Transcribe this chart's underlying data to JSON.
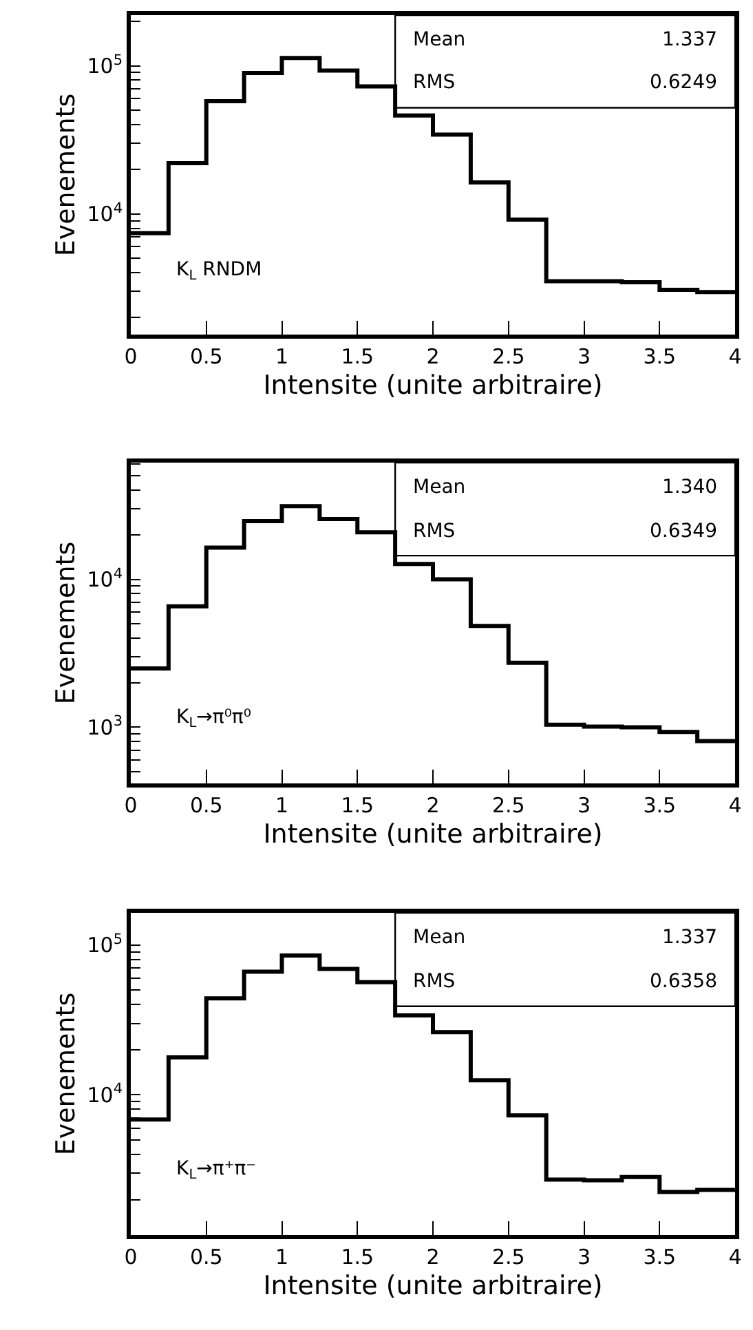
{
  "chart_data": [
    {
      "type": "histogram",
      "xlabel": "Intensite (unite arbitraire)",
      "ylabel": "Evenements",
      "log": "y",
      "color": "#000000",
      "bins": [
        0,
        0.25,
        0.5,
        0.75,
        1,
        1.25,
        1.5,
        1.75,
        2,
        2.25,
        2.5,
        2.75,
        3,
        3.25,
        3.5,
        3.75,
        4
      ],
      "values": [
        7400,
        22000,
        57700,
        89500,
        113000,
        93000,
        72600,
        46200,
        34300,
        16300,
        9150,
        3510,
        3510,
        3450,
        3070,
        2960
      ],
      "xlim": [
        0,
        4
      ],
      "ylim": [
        1530,
        220000
      ],
      "xticks": [
        0,
        0.5,
        1,
        1.5,
        2,
        2.5,
        3,
        3.5,
        4
      ],
      "yticks": [
        {
          "value": 2000,
          "label": null
        },
        {
          "value": 3000,
          "label": null
        },
        {
          "value": 4000,
          "label": null
        },
        {
          "value": 5000,
          "label": null
        },
        {
          "value": 6000,
          "label": null
        },
        {
          "value": 7000,
          "label": null
        },
        {
          "value": 8000,
          "label": null
        },
        {
          "value": 9000,
          "label": null
        },
        {
          "value": 10000,
          "label": "10$^{4}$"
        },
        {
          "value": 20000,
          "label": null
        },
        {
          "value": 30000,
          "label": null
        },
        {
          "value": 40000,
          "label": null
        },
        {
          "value": 50000,
          "label": null
        },
        {
          "value": 60000,
          "label": null
        },
        {
          "value": 70000,
          "label": null
        },
        {
          "value": 80000,
          "label": null
        },
        {
          "value": 90000,
          "label": null
        },
        {
          "value": 100000,
          "label": "10$^{5}$"
        },
        {
          "value": 200000,
          "label": null
        }
      ],
      "annotations": [
        "Mean",
        "1.337",
        "RMS",
        "0.6249",
        "K$_{L}$ RNDM"
      ]
    },
    {
      "type": "histogram",
      "xlabel": "Intensite (unite arbitraire)",
      "ylabel": "Evenements",
      "log": "y",
      "color": "#000000",
      "bins": [
        0,
        0.25,
        0.5,
        0.75,
        1,
        1.25,
        1.5,
        1.75,
        2,
        2.25,
        2.5,
        2.75,
        3,
        3.25,
        3.5,
        3.75,
        4
      ],
      "values": [
        2500,
        6570,
        16400,
        24800,
        31300,
        25600,
        20800,
        12700,
        10000,
        4840,
        2730,
        1040,
        1010,
        1000,
        929,
        807
      ],
      "xlim": [
        0,
        4
      ],
      "ylim": [
        417,
        61600
      ],
      "xticks": [
        0,
        0.5,
        1,
        1.5,
        2,
        2.5,
        3,
        3.5,
        4
      ],
      "yticks": [
        {
          "value": 500,
          "label": null
        },
        {
          "value": 600,
          "label": null
        },
        {
          "value": 700,
          "label": null
        },
        {
          "value": 800,
          "label": null
        },
        {
          "value": 900,
          "label": null
        },
        {
          "value": 1000,
          "label": "10$^{3}$"
        },
        {
          "value": 2000,
          "label": null
        },
        {
          "value": 3000,
          "label": null
        },
        {
          "value": 4000,
          "label": null
        },
        {
          "value": 5000,
          "label": null
        },
        {
          "value": 6000,
          "label": null
        },
        {
          "value": 7000,
          "label": null
        },
        {
          "value": 8000,
          "label": null
        },
        {
          "value": 9000,
          "label": null
        },
        {
          "value": 10000,
          "label": "10$^{4}$"
        },
        {
          "value": 20000,
          "label": null
        },
        {
          "value": 30000,
          "label": null
        },
        {
          "value": 40000,
          "label": null
        },
        {
          "value": 50000,
          "label": null
        },
        {
          "value": 60000,
          "label": null
        }
      ],
      "annotations": [
        "Mean",
        "1.340",
        "RMS",
        "0.6349",
        "K$_{L}$→π⁰π⁰"
      ]
    },
    {
      "type": "histogram",
      "xlabel": "Intensite (unite arbitraire)",
      "ylabel": "Evenements",
      "log": "y",
      "color": "#000000",
      "bins": [
        0,
        0.25,
        0.5,
        0.75,
        1,
        1.25,
        1.5,
        1.75,
        2,
        2.25,
        2.5,
        2.75,
        3,
        3.25,
        3.5,
        3.75,
        4
      ],
      "values": [
        6840,
        17800,
        44100,
        66400,
        85100,
        69300,
        56500,
        33900,
        26200,
        12500,
        7300,
        2720,
        2690,
        2830,
        2250,
        2320
      ],
      "xlim": [
        0,
        4
      ],
      "ylim": [
        1160,
        164000
      ],
      "xticks": [
        0,
        0.5,
        1,
        1.5,
        2,
        2.5,
        3,
        3.5,
        4
      ],
      "yticks": [
        {
          "value": 2000,
          "label": null
        },
        {
          "value": 3000,
          "label": null
        },
        {
          "value": 4000,
          "label": null
        },
        {
          "value": 5000,
          "label": null
        },
        {
          "value": 6000,
          "label": null
        },
        {
          "value": 7000,
          "label": null
        },
        {
          "value": 8000,
          "label": null
        },
        {
          "value": 9000,
          "label": null
        },
        {
          "value": 10000,
          "label": "10$^{4}$"
        },
        {
          "value": 20000,
          "label": null
        },
        {
          "value": 30000,
          "label": null
        },
        {
          "value": 40000,
          "label": null
        },
        {
          "value": 50000,
          "label": null
        },
        {
          "value": 60000,
          "label": null
        },
        {
          "value": 70000,
          "label": null
        },
        {
          "value": 80000,
          "label": null
        },
        {
          "value": 90000,
          "label": null
        },
        {
          "value": 100000,
          "label": "10$^{5}$"
        }
      ],
      "annotations": [
        "Mean",
        "1.337",
        "RMS",
        "0.6358",
        "K$_{L}$→π⁺π⁻"
      ]
    }
  ]
}
